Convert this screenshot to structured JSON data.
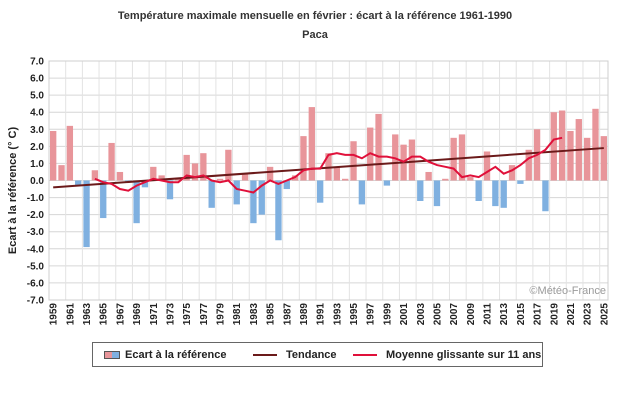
{
  "header": {
    "title": "Température maximale mensuelle en février : écart à la référence 1961-1990",
    "subtitle": "Paca"
  },
  "watermark": "©Météo-France",
  "legend": {
    "bars": "Ecart à la référence",
    "trend": "Tendance",
    "moving_avg": "Moyenne glissante sur 11 ans"
  },
  "colors": {
    "positive": "#e8959a",
    "negative": "#7fb0e0",
    "trend": "#6b1a1a",
    "moving_avg": "#e0103a"
  },
  "chart_data": {
    "type": "bar",
    "ylabel": "Ecart à la référence (° C)",
    "ylim": [
      -7,
      7
    ],
    "yticks": [
      "7.0",
      "6.0",
      "5.0",
      "4.0",
      "3.0",
      "2.0",
      "1.0",
      "0.0",
      "-1.0",
      "-2.0",
      "-3.0",
      "-4.0",
      "-5.0",
      "-6.0",
      "-7.0"
    ],
    "xticks": [
      "1959",
      "1961",
      "1963",
      "1965",
      "1967",
      "1969",
      "1971",
      "1973",
      "1975",
      "1977",
      "1979",
      "1981",
      "1983",
      "1985",
      "1987",
      "1989",
      "1991",
      "1993",
      "1995",
      "1997",
      "1999",
      "2001",
      "2003",
      "2005",
      "2007",
      "2009",
      "2011",
      "2013",
      "2015",
      "2017",
      "2019",
      "2021",
      "2023",
      "2025"
    ],
    "x": [
      1959,
      1960,
      1961,
      1962,
      1963,
      1964,
      1965,
      1966,
      1967,
      1968,
      1969,
      1970,
      1971,
      1972,
      1973,
      1974,
      1975,
      1976,
      1977,
      1978,
      1979,
      1980,
      1981,
      1982,
      1983,
      1984,
      1985,
      1986,
      1987,
      1988,
      1989,
      1990,
      1991,
      1992,
      1993,
      1994,
      1995,
      1996,
      1997,
      1998,
      1999,
      2000,
      2001,
      2002,
      2003,
      2004,
      2005,
      2006,
      2007,
      2008,
      2009,
      2010,
      2011,
      2012,
      2013,
      2014,
      2015,
      2016,
      2017,
      2018,
      2019,
      2020,
      2021,
      2022,
      2023,
      2024,
      2025
    ],
    "series": [
      {
        "name": "Ecart à la référence",
        "type": "bar",
        "values": [
          2.9,
          0.9,
          3.2,
          -0.3,
          -3.9,
          0.6,
          -2.2,
          2.2,
          0.5,
          -0.1,
          -2.5,
          -0.4,
          0.8,
          0.3,
          -1.1,
          0.1,
          1.5,
          1.0,
          1.6,
          -1.6,
          0.1,
          1.8,
          -1.4,
          0.4,
          -2.5,
          -2.0,
          0.8,
          -3.5,
          -0.5,
          0.3,
          2.6,
          4.3,
          -1.3,
          1.6,
          0.8,
          0.1,
          2.3,
          -1.4,
          3.1,
          3.9,
          -0.3,
          2.7,
          2.1,
          2.4,
          -1.2,
          0.5,
          -1.5,
          0.1,
          2.5,
          2.7,
          0.2,
          -1.2,
          1.7,
          -1.5,
          -1.6,
          0.9,
          -0.2,
          1.8,
          3.0,
          -1.8,
          4.0,
          4.1,
          2.9,
          3.6,
          2.5,
          4.2,
          2.6
        ]
      },
      {
        "name": "Tendance",
        "type": "line",
        "x": [
          1959,
          2025
        ],
        "values": [
          -0.4,
          1.9
        ]
      },
      {
        "name": "Moyenne glissante sur 11 ans",
        "type": "line",
        "x": [
          1964,
          1965,
          1966,
          1967,
          1968,
          1969,
          1970,
          1971,
          1972,
          1973,
          1974,
          1975,
          1976,
          1977,
          1978,
          1979,
          1980,
          1981,
          1982,
          1983,
          1984,
          1985,
          1986,
          1987,
          1988,
          1989,
          1990,
          1991,
          1992,
          1993,
          1994,
          1995,
          1996,
          1997,
          1998,
          1999,
          2000,
          2001,
          2002,
          2003,
          2004,
          2005,
          2006,
          2007,
          2008,
          2009,
          2010,
          2011,
          2012,
          2013,
          2014,
          2015,
          2016,
          2017,
          2018,
          2019,
          2020
        ],
        "values": [
          0.1,
          -0.1,
          -0.2,
          -0.5,
          -0.6,
          -0.3,
          -0.1,
          0.1,
          0.0,
          -0.1,
          -0.1,
          0.3,
          0.2,
          0.3,
          0.0,
          -0.1,
          0.0,
          -0.5,
          -0.6,
          -0.7,
          -0.3,
          0.0,
          -0.2,
          0.0,
          0.2,
          0.6,
          0.7,
          0.7,
          1.5,
          1.6,
          1.5,
          1.5,
          1.3,
          1.6,
          1.4,
          1.4,
          1.3,
          1.1,
          1.4,
          1.4,
          1.1,
          0.9,
          0.8,
          0.7,
          0.2,
          0.3,
          0.2,
          0.5,
          0.8,
          0.4,
          0.6,
          0.9,
          1.3,
          1.5,
          1.8,
          2.4,
          2.5
        ]
      }
    ],
    "grid": true,
    "legend_position": "bottom"
  }
}
